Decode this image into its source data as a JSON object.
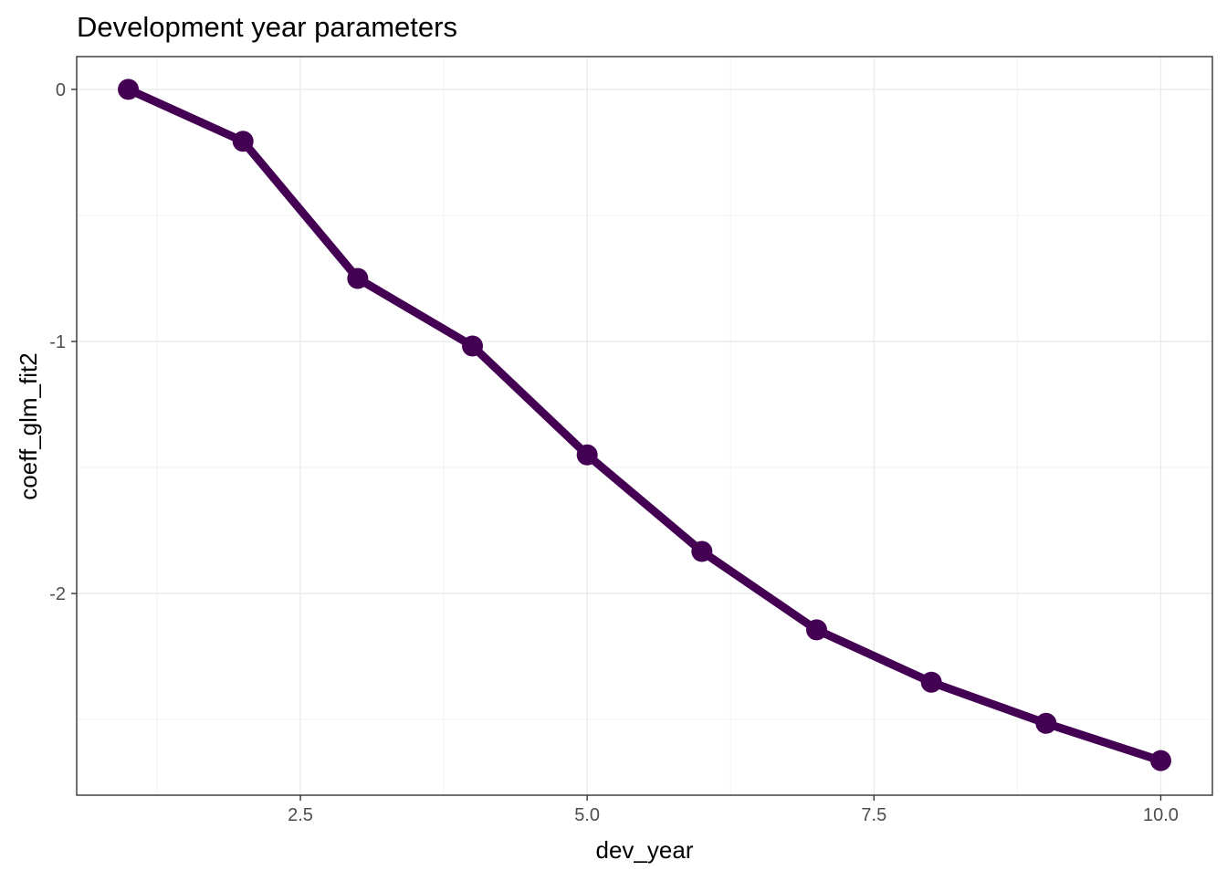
{
  "chart_data": {
    "type": "line",
    "title": "Development year parameters",
    "xlabel": "dev_year",
    "ylabel": "coeff_glm_fit2",
    "xlim": [
      0.55,
      10.45
    ],
    "ylim": [
      -2.8,
      0.13
    ],
    "x_ticks": [
      2.5,
      5.0,
      7.5,
      10.0
    ],
    "x_tick_labels": [
      "2.5",
      "5.0",
      "7.5",
      "10.0"
    ],
    "y_ticks": [
      0,
      -1,
      -2
    ],
    "y_tick_labels": [
      "0",
      "-1",
      "-2"
    ],
    "x_minor_ticks": [
      1.25,
      3.75,
      6.25,
      8.75
    ],
    "y_minor_ticks": [
      -0.5,
      -1.5,
      -2.5
    ],
    "grid": true,
    "legend": "none",
    "series": [
      {
        "color": "#440154",
        "x": [
          1,
          2,
          3,
          4,
          5,
          6,
          7,
          8,
          9,
          10
        ],
        "y": [
          0.0,
          -0.206,
          -0.75,
          -1.018,
          -1.45,
          -1.833,
          -2.144,
          -2.352,
          -2.515,
          -2.663
        ]
      }
    ]
  }
}
